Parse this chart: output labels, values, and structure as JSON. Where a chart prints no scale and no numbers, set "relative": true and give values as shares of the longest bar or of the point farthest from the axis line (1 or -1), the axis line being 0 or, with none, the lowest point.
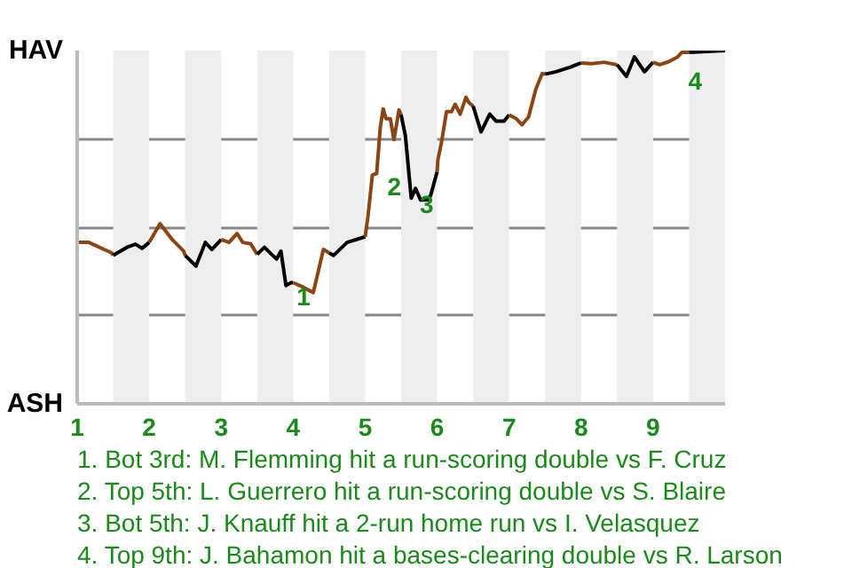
{
  "chart_data": {
    "type": "line",
    "relative": true,
    "xlim": [
      1,
      10
    ],
    "xticks": [
      1,
      2,
      3,
      4,
      5,
      6,
      7,
      8,
      9
    ],
    "grid": "y",
    "marker": "none",
    "line_style": "solid",
    "series": [
      {
        "color": "#8b4513",
        "x": [
          1,
          1.16,
          1.48,
          1.5
        ],
        "values": [
          0.457,
          0.457,
          0.427,
          0.42
        ]
      },
      {
        "color": "#000000",
        "x": [
          1.5,
          1.69,
          1.81,
          1.9,
          2
        ],
        "values": [
          0.42,
          0.443,
          0.452,
          0.44,
          0.457
        ]
      },
      {
        "color": "#8b4513",
        "x": [
          2,
          2.15,
          2.32,
          2.48,
          2.5
        ],
        "values": [
          0.457,
          0.51,
          0.465,
          0.432,
          0.42
        ]
      },
      {
        "color": "#000000",
        "x": [
          2.5,
          2.65,
          2.78,
          2.87,
          3
        ],
        "values": [
          0.42,
          0.39,
          0.457,
          0.437,
          0.465
        ]
      },
      {
        "color": "#8b4513",
        "x": [
          3,
          3.11,
          3.22,
          3.3,
          3.41,
          3.5
        ],
        "values": [
          0.465,
          0.457,
          0.482,
          0.457,
          0.453,
          0.423
        ]
      },
      {
        "color": "#000000",
        "x": [
          3.5,
          3.6,
          3.7,
          3.77,
          3.83,
          3.9,
          3.97,
          4
        ],
        "values": [
          0.423,
          0.443,
          0.423,
          0.41,
          0.432,
          0.335,
          0.343,
          0.343
        ]
      },
      {
        "color": "#8b4513",
        "x": [
          4,
          4.12,
          4.28,
          4.42,
          4.5
        ],
        "values": [
          0.343,
          0.332,
          0.315,
          0.437,
          0.427
        ]
      },
      {
        "color": "#000000",
        "x": [
          4.5,
          4.56,
          4.75,
          5
        ],
        "values": [
          0.427,
          0.42,
          0.457,
          0.473
        ]
      },
      {
        "color": "#8b4513",
        "x": [
          5,
          5.04,
          5.1,
          5.16,
          5.21,
          5.25,
          5.29,
          5.35,
          5.4,
          5.47,
          5.5
        ],
        "values": [
          0.473,
          0.532,
          0.648,
          0.652,
          0.782,
          0.835,
          0.807,
          0.807,
          0.748,
          0.832,
          0.818
        ]
      },
      {
        "color": "#000000",
        "x": [
          5.5,
          5.56,
          5.64,
          5.7,
          5.77,
          5.87,
          5.91,
          5.97,
          6
        ],
        "values": [
          0.818,
          0.757,
          0.582,
          0.61,
          0.577,
          0.577,
          0.59,
          0.635,
          0.657
        ]
      },
      {
        "color": "#8b4513",
        "x": [
          6,
          6.01,
          6.06,
          6.13,
          6.2,
          6.25,
          6.32,
          6.4,
          6.44,
          6.5
        ],
        "values": [
          0.657,
          0.69,
          0.74,
          0.827,
          0.827,
          0.848,
          0.82,
          0.868,
          0.853,
          0.843
        ]
      },
      {
        "color": "#000000",
        "x": [
          6.5,
          6.61,
          6.73,
          6.82,
          6.93,
          7
        ],
        "values": [
          0.843,
          0.77,
          0.82,
          0.8,
          0.8,
          0.818
        ]
      },
      {
        "color": "#8b4513",
        "x": [
          7,
          7.1,
          7.18,
          7.27,
          7.37,
          7.46,
          7.5
        ],
        "values": [
          0.818,
          0.807,
          0.79,
          0.812,
          0.89,
          0.935,
          0.933
        ]
      },
      {
        "color": "#000000",
        "x": [
          7.5,
          7.65,
          7.85,
          8
        ],
        "values": [
          0.933,
          0.94,
          0.953,
          0.965
        ]
      },
      {
        "color": "#8b4513",
        "x": [
          8,
          8.15,
          8.32,
          8.5
        ],
        "values": [
          0.965,
          0.963,
          0.967,
          0.96
        ]
      },
      {
        "color": "#000000",
        "x": [
          8.5,
          8.63,
          8.74,
          8.88,
          9
        ],
        "values": [
          0.96,
          0.927,
          0.982,
          0.94,
          0.967
        ]
      },
      {
        "color": "#8b4513",
        "x": [
          9,
          9.09,
          9.21,
          9.34,
          9.4,
          9.5
        ],
        "values": [
          0.967,
          0.96,
          0.968,
          0.982,
          0.995,
          0.995
        ]
      },
      {
        "color": "#000000",
        "x": [
          9.5,
          10
        ],
        "values": [
          0.995,
          1
        ]
      }
    ],
    "bands": [
      {
        "axis": "x",
        "from": 1.5,
        "to": 2,
        "color": "#eeeeee"
      },
      {
        "axis": "x",
        "from": 2.5,
        "to": 3,
        "color": "#eeeeee"
      },
      {
        "axis": "x",
        "from": 3.5,
        "to": 4,
        "color": "#eeeeee"
      },
      {
        "axis": "x",
        "from": 4.5,
        "to": 5,
        "color": "#eeeeee"
      },
      {
        "axis": "x",
        "from": 5.5,
        "to": 6,
        "color": "#eeeeee"
      },
      {
        "axis": "x",
        "from": 6.5,
        "to": 7,
        "color": "#eeeeee"
      },
      {
        "axis": "x",
        "from": 7.5,
        "to": 8,
        "color": "#eeeeee"
      },
      {
        "axis": "x",
        "from": 8.5,
        "to": 9,
        "color": "#eeeeee"
      },
      {
        "axis": "x",
        "from": 9.5,
        "to": 10,
        "color": "#eeeeee"
      }
    ],
    "annotations": [
      "HAV",
      "ASH",
      {
        "text": "1",
        "x": 4.0,
        "y": 0.34
      },
      {
        "text": "2",
        "x": 5.26,
        "y": 0.65
      },
      {
        "text": "3",
        "x": 5.71,
        "y": 0.6
      },
      {
        "text": "4",
        "x": 9.44,
        "y": 0.95
      },
      "1. Bot 3rd: M. Flemming hit a run-scoring double vs F. Cruz",
      "2. Top 5th: L. Guerrero hit a run-scoring double vs S. Blaire",
      "3. Bot 5th: J. Knauff hit a 2-run home run vs I. Velasquez",
      "4. Top 9th: J. Bahamon hit a bases-clearing double vs R. Larson"
    ]
  }
}
